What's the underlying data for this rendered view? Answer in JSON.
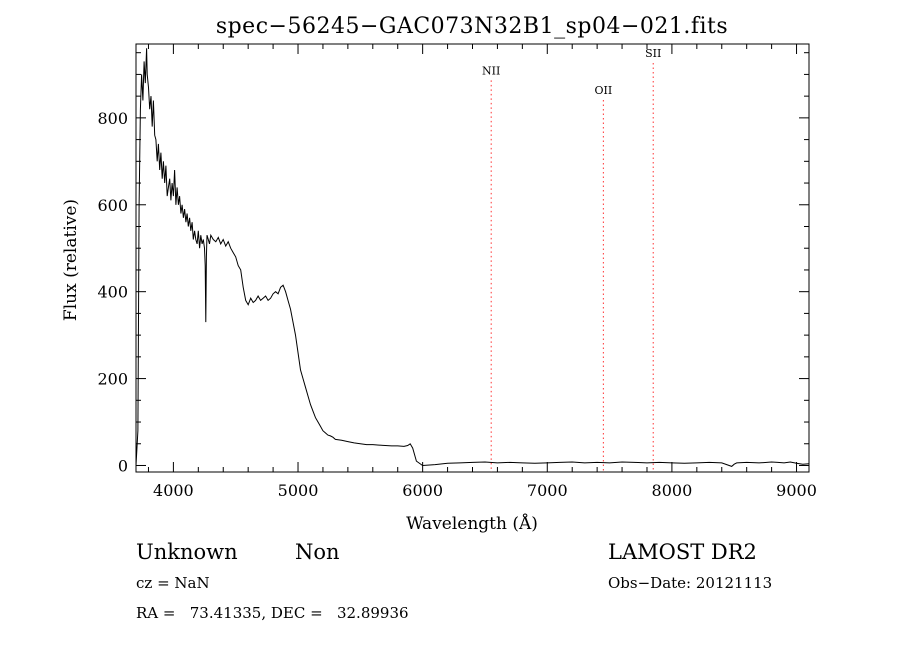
{
  "chart_data": {
    "type": "line",
    "title": "spec−56245−GAC073N32B1_sp04−021.fits",
    "xlabel": "Wavelength (Å)",
    "ylabel": "Flux (relative)",
    "xlim": [
      3700,
      9100
    ],
    "ylim": [
      -15,
      970
    ],
    "x_ticks": [
      4000,
      5000,
      6000,
      7000,
      8000,
      9000
    ],
    "y_ticks": [
      0,
      200,
      400,
      600,
      800
    ],
    "grid": false,
    "series": [
      {
        "x": [
          3700,
          3715,
          3725,
          3735,
          3745,
          3755,
          3765,
          3775,
          3785,
          3790,
          3800,
          3810,
          3820,
          3830,
          3840,
          3850,
          3860,
          3870,
          3880,
          3890,
          3900,
          3910,
          3920,
          3930,
          3940,
          3950,
          3960,
          3970,
          3980,
          3990,
          4000,
          4010,
          4020,
          4030,
          4040,
          4050,
          4060,
          4070,
          4080,
          4090,
          4100,
          4110,
          4120,
          4130,
          4140,
          4150,
          4160,
          4170,
          4180,
          4190,
          4200,
          4210,
          4220,
          4230,
          4240,
          4250,
          4255,
          4260,
          4265,
          4270,
          4280,
          4290,
          4300,
          4320,
          4340,
          4360,
          4380,
          4400,
          4420,
          4440,
          4460,
          4480,
          4500,
          4520,
          4540,
          4560,
          4580,
          4600,
          4620,
          4640,
          4660,
          4680,
          4700,
          4720,
          4740,
          4760,
          4780,
          4800,
          4820,
          4840,
          4860,
          4880,
          4900,
          4920,
          4940,
          4960,
          4980,
          5000,
          5020,
          5040,
          5060,
          5080,
          5100,
          5120,
          5140,
          5160,
          5180,
          5200,
          5220,
          5240,
          5260,
          5280,
          5300,
          5350,
          5400,
          5450,
          5500,
          5550,
          5600,
          5650,
          5700,
          5750,
          5800,
          5850,
          5880,
          5900,
          5910,
          5920,
          5950,
          6000,
          6100,
          6200,
          6300,
          6400,
          6500,
          6600,
          6700,
          6800,
          6900,
          7000,
          7100,
          7200,
          7300,
          7400,
          7500,
          7600,
          7700,
          7800,
          7900,
          8000,
          8100,
          8200,
          8300,
          8400,
          8480,
          8500,
          8520,
          8600,
          8700,
          8800,
          8850,
          8900,
          8950,
          9000,
          9050,
          9100
        ],
        "y": [
          0,
          80,
          600,
          820,
          900,
          840,
          930,
          880,
          960,
          900,
          870,
          820,
          850,
          780,
          840,
          760,
          750,
          700,
          740,
          680,
          720,
          660,
          700,
          650,
          690,
          620,
          640,
          660,
          610,
          650,
          620,
          680,
          600,
          640,
          600,
          620,
          580,
          600,
          570,
          590,
          560,
          580,
          550,
          570,
          540,
          560,
          520,
          540,
          520,
          510,
          540,
          500,
          530,
          510,
          520,
          500,
          460,
          330,
          480,
          530,
          520,
          510,
          530,
          520,
          515,
          525,
          510,
          520,
          505,
          515,
          500,
          490,
          480,
          460,
          450,
          410,
          380,
          370,
          385,
          375,
          380,
          390,
          380,
          385,
          390,
          380,
          385,
          395,
          400,
          395,
          410,
          415,
          400,
          380,
          360,
          330,
          300,
          260,
          220,
          200,
          180,
          160,
          140,
          125,
          110,
          100,
          90,
          80,
          75,
          70,
          68,
          65,
          60,
          58,
          55,
          52,
          50,
          48,
          48,
          47,
          46,
          45,
          45,
          44,
          46,
          50,
          45,
          40,
          10,
          0,
          2,
          5,
          6,
          7,
          8,
          6,
          7,
          6,
          5,
          6,
          7,
          8,
          6,
          7,
          6,
          8,
          7,
          6,
          7,
          6,
          5,
          6,
          7,
          6,
          -2,
          3,
          6,
          7,
          6,
          8,
          7,
          6,
          8,
          5,
          3,
          4
        ]
      }
    ],
    "line_markers": [
      {
        "name": "NII",
        "x": 6550,
        "label_y": 900
      },
      {
        "name": "OII",
        "x": 7450,
        "label_y": 855
      },
      {
        "name": "SII",
        "x": 7850,
        "label_y": 940
      }
    ],
    "marker_color": "#ff3333"
  },
  "info": {
    "class": "Unknown",
    "subclass": "Non",
    "survey": "LAMOST DR2",
    "cz": "cz = NaN",
    "obs_date": "Obs−Date: 20121113",
    "coords": "RA =   73.41335, DEC =   32.89936"
  }
}
